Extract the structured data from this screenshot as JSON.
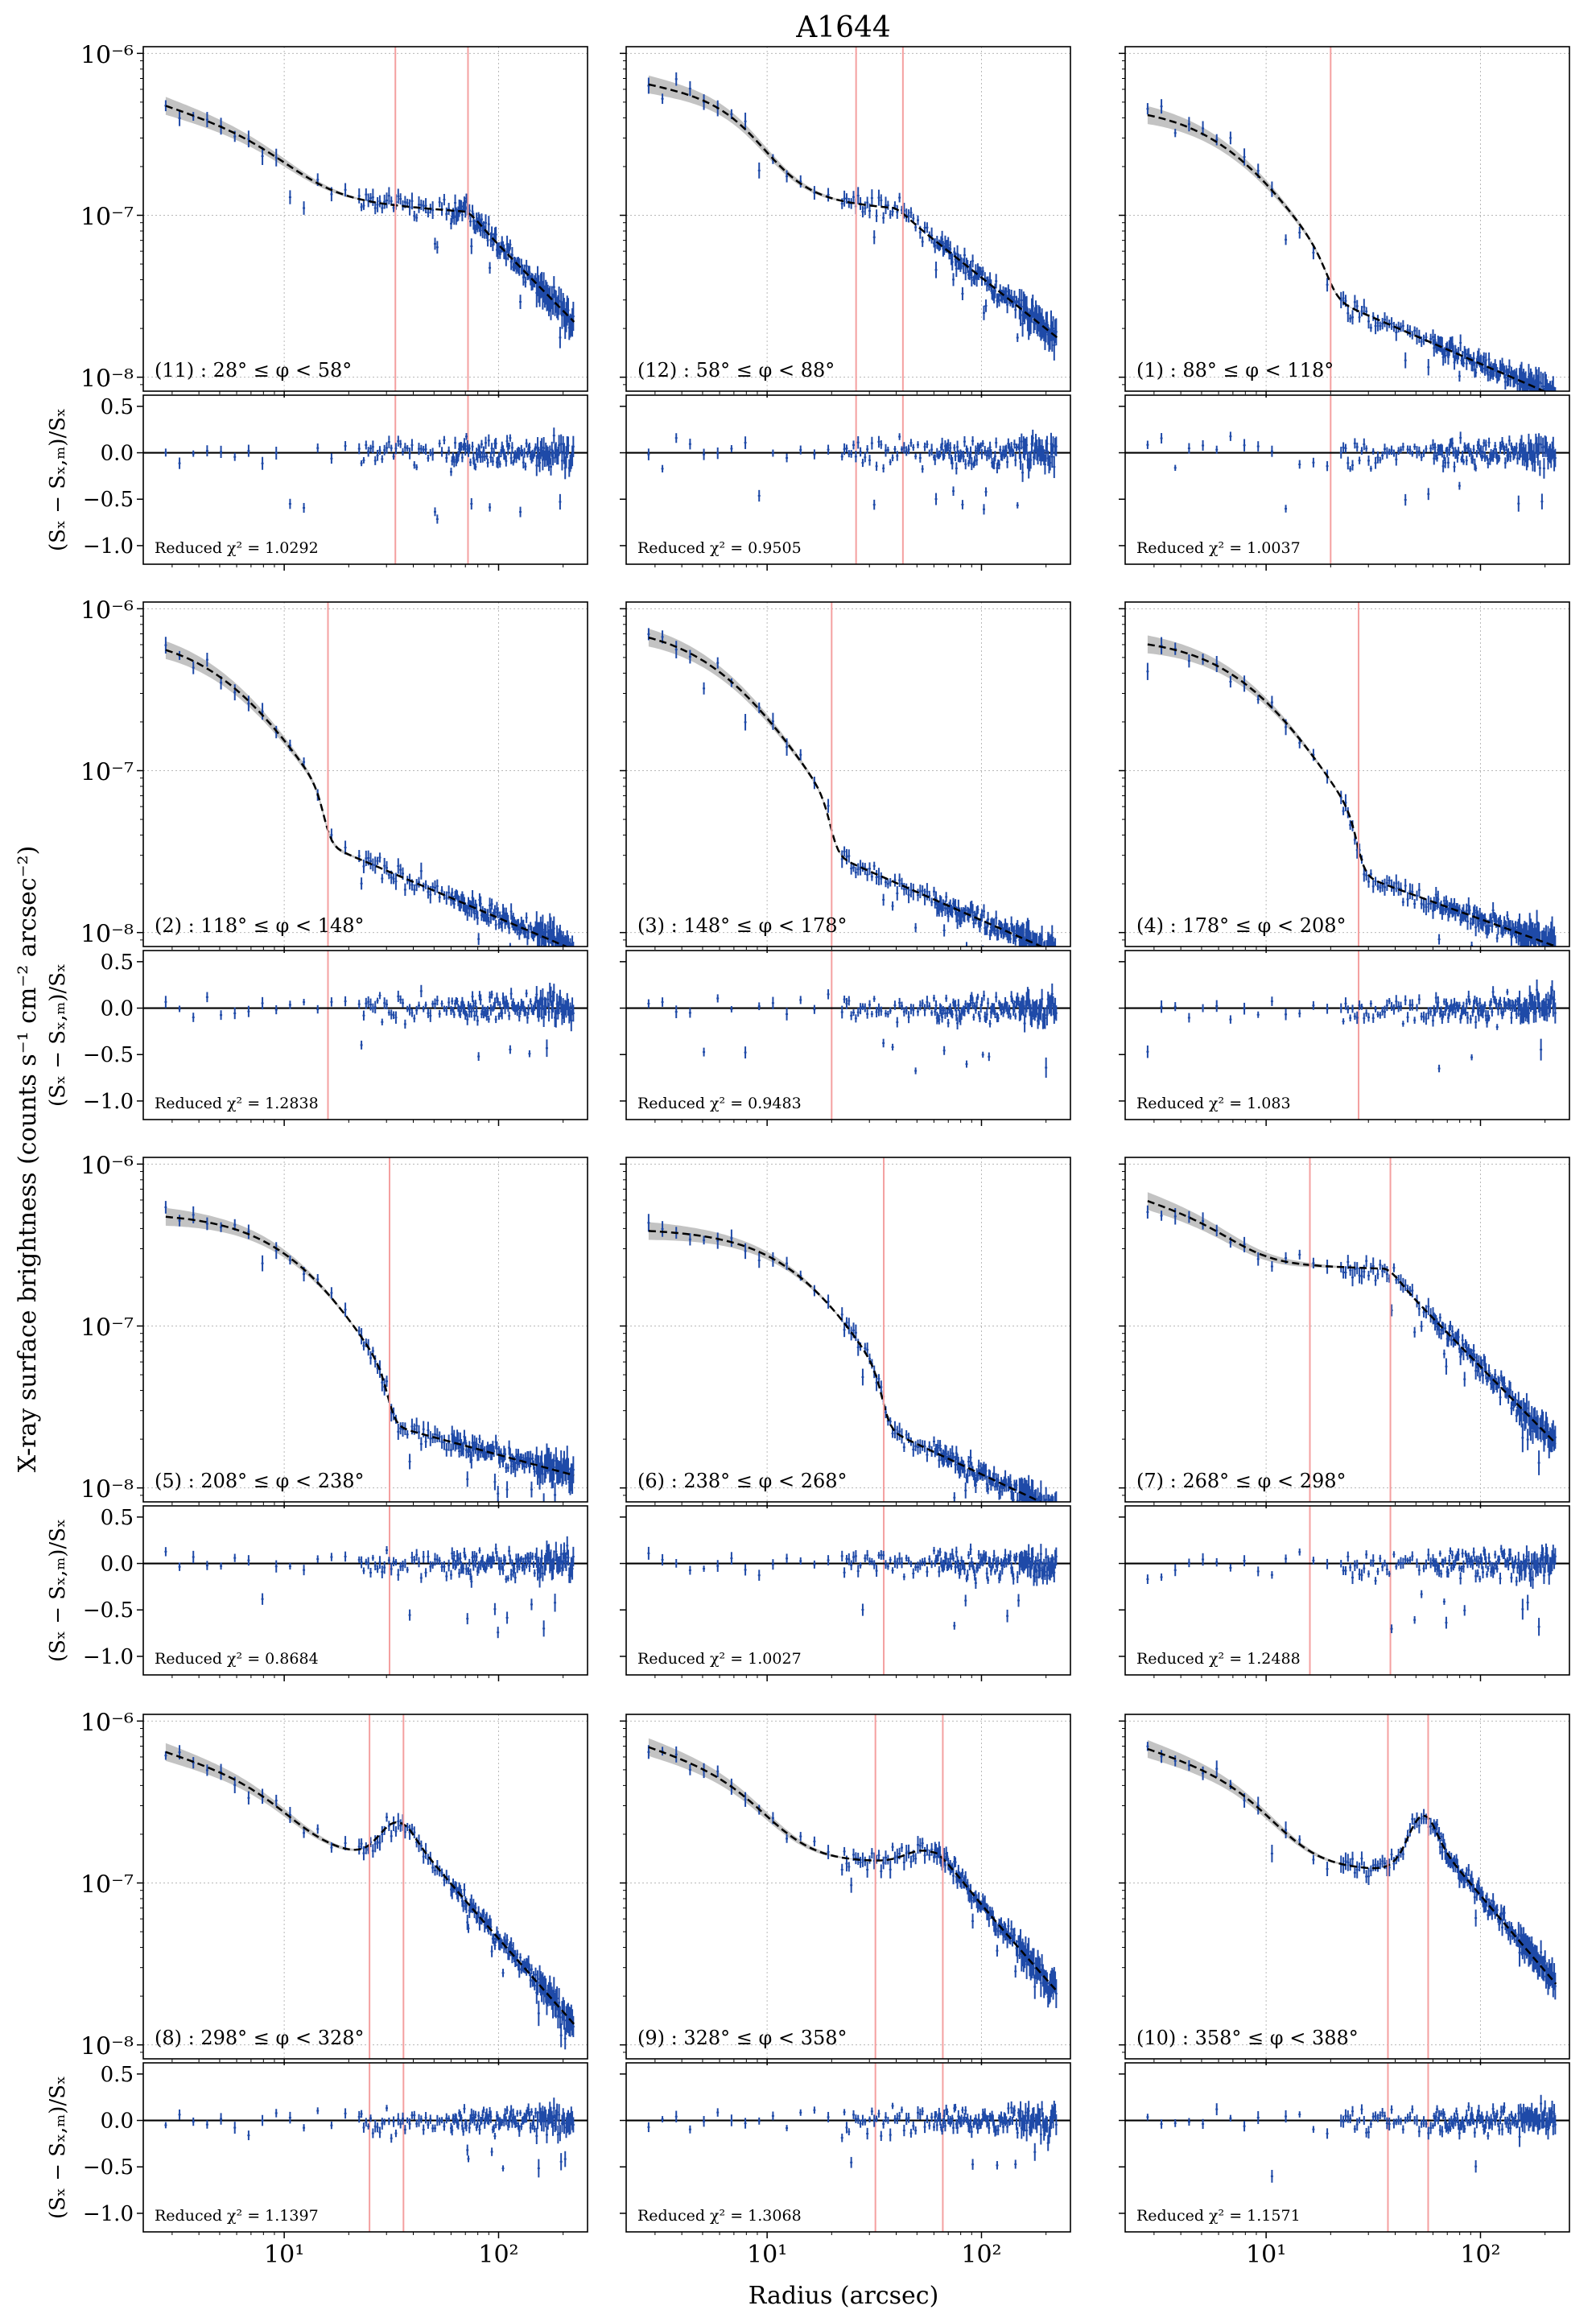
{
  "title": "A1644",
  "ylabel": "X-ray surface brightness (counts s⁻¹ cm⁻² arcsec⁻²)",
  "xlabel": "Radius (arcsec)",
  "resid_ylabel": "(Sₓ − Sₓ,ₘ)/Sₓ",
  "reduced_chi2_prefix": "Reduced χ² = ",
  "colors": {
    "data": "#1f4aa8",
    "model": "#000000",
    "band": "#bdbdbd",
    "edge": "#f4a0a0",
    "grid": "#b8b8b8"
  },
  "chart_data": {
    "type": "scatter",
    "x_scale": "log",
    "y_scale": "log",
    "xlim": [
      2.2,
      260
    ],
    "ylim": [
      8.2e-09,
      1.1e-06
    ],
    "resid_ylim": [
      -1.2,
      0.62
    ],
    "x_ticks": [
      "10¹",
      "10²"
    ],
    "y_ticks": [
      "10⁻⁸",
      "10⁻⁷",
      "10⁻⁶"
    ],
    "resid_ticks": [
      "0.5",
      "0.0",
      "−0.5",
      "−1.0"
    ],
    "grid": true,
    "panels": [
      {
        "label": "(11) : 28° ≤ φ < 58°",
        "chi2": "1.0292",
        "edges": [
          33,
          72
        ],
        "model": {
          "type": "shelf",
          "y0": 4.8e-07,
          "s0": 0.42,
          "r1": 12,
          "w1": 0.55,
          "yp": 1.05e-07,
          "s2": -0.1,
          "r2": 72,
          "j2": 0.85,
          "s3": -1.35
        }
      },
      {
        "label": "(12) : 58° ≤ φ < 88°",
        "chi2": "0.9505",
        "edges": [
          26,
          43
        ],
        "model": {
          "type": "shelf",
          "y0": 6.5e-07,
          "s0": 0.25,
          "r1": 10,
          "w1": 0.45,
          "yp": 1.1e-07,
          "s2": -0.1,
          "r2": 40,
          "j2": 0.9,
          "s3": -1.05
        }
      },
      {
        "label": "(1) : 88° ≤ φ < 118°",
        "chi2": "1.0037",
        "edges": [
          20
        ],
        "model": {
          "type": "edge",
          "y0": 4.8e-07,
          "rc": 7.5,
          "sb": 2.2,
          "r1": 20,
          "j": 0.2,
          "s": -0.57,
          "soft": 0.03
        }
      },
      {
        "label": "(2) : 118° ≤ φ < 148°",
        "chi2": "1.2838",
        "edges": [
          16
        ],
        "model": {
          "type": "edge",
          "y0": 7e-07,
          "rc": 5.8,
          "sb": 2.2,
          "r1": 15.5,
          "j": 0.3,
          "s": -0.56,
          "soft": 0.02
        }
      },
      {
        "label": "(3) : 148° ≤ φ < 178°",
        "chi2": "0.9483",
        "edges": [
          20
        ],
        "model": {
          "type": "edge",
          "y0": 8e-07,
          "rc": 6.5,
          "sb": 2.2,
          "r1": 20,
          "j": 0.3,
          "s": -0.58,
          "soft": 0.02
        }
      },
      {
        "label": "(4) : 178° ≤ φ < 208°",
        "chi2": "1.083",
        "edges": [
          27
        ],
        "model": {
          "type": "edge",
          "y0": 6.7e-07,
          "rc": 9.0,
          "sb": 2.3,
          "r1": 27,
          "j": 0.32,
          "s": -0.48,
          "soft": 0.02
        }
      },
      {
        "label": "(5) : 208° ≤ φ < 238°",
        "chi2": "0.8684",
        "edges": [
          31
        ],
        "model": {
          "type": "edge",
          "y0": 5e-07,
          "rc": 13.0,
          "sb": 2.5,
          "r1": 31,
          "j": 0.28,
          "s": -0.36,
          "soft": 0.02
        }
      },
      {
        "label": "(6) : 238° ≤ φ < 268°",
        "chi2": "1.0027",
        "edges": [
          35
        ],
        "model": {
          "type": "edge",
          "y0": 4e-07,
          "rc": 17.0,
          "sb": 2.6,
          "r1": 35,
          "j": 0.3,
          "s": -0.62,
          "soft": 0.02
        }
      },
      {
        "label": "(7) : 268° ≤ φ < 298°",
        "chi2": "1.2488",
        "edges": [
          16,
          38
        ],
        "model": {
          "type": "shelf",
          "y0": 6e-07,
          "s0": 0.42,
          "r1": 8,
          "w1": 0.45,
          "yp": 2.25e-07,
          "s2": -0.05,
          "r2": 38,
          "j2": 0.55,
          "s3": -1.35
        }
      },
      {
        "label": "(8) : 298° ≤ φ < 328°",
        "chi2": "1.1397",
        "edges": [
          25,
          36
        ],
        "model": {
          "type": "bump",
          "y0": 6.5e-07,
          "s0": 0.42,
          "r1": 12,
          "w1": 0.5,
          "yp": 1.45e-07,
          "bc": 35,
          "ba": 0.25,
          "bw": 0.12,
          "r2": 38,
          "w2": 0.2,
          "s3": -1.5
        }
      },
      {
        "label": "(9) : 328° ≤ φ < 358°",
        "chi2": "1.3068",
        "edges": [
          32,
          66
        ],
        "model": {
          "type": "bump",
          "y0": 7e-07,
          "s0": 0.42,
          "r1": 11,
          "w1": 0.5,
          "yp": 1.35e-07,
          "bc": 55,
          "ba": 0.08,
          "bw": 0.12,
          "r2": 62,
          "w2": 0.2,
          "s3": -1.5
        }
      },
      {
        "label": "(10) : 358° ≤ φ < 388°",
        "chi2": "1.1571",
        "edges": [
          37,
          57
        ],
        "model": {
          "type": "bump",
          "y0": 6.8e-07,
          "s0": 0.42,
          "r1": 12,
          "w1": 0.5,
          "yp": 1.2e-07,
          "bc": 57,
          "ba": 0.42,
          "bw": 0.11,
          "r2": 58,
          "w2": 0.16,
          "s3": -1.55
        }
      }
    ]
  }
}
